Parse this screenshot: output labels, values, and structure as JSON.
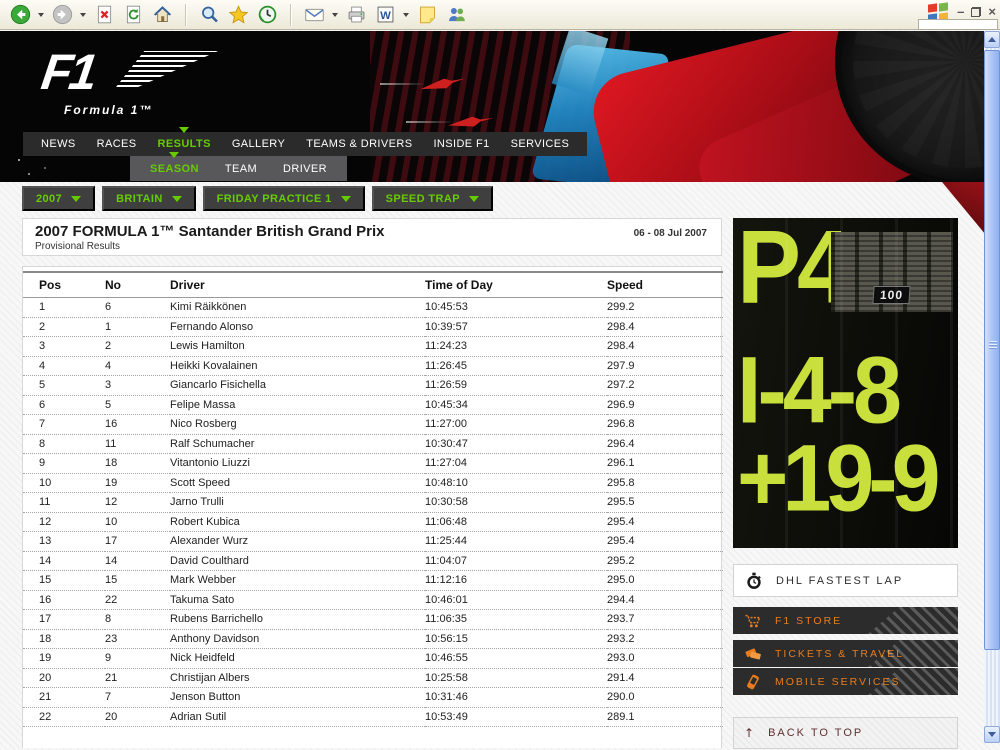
{
  "browser": {
    "toolbar_items": [
      {
        "name": "back-icon",
        "dropdown": true
      },
      {
        "name": "forward-icon",
        "dropdown": true
      },
      {
        "name": "stop-icon"
      },
      {
        "name": "refresh-icon"
      },
      {
        "name": "home-icon"
      },
      {
        "name": "separator"
      },
      {
        "name": "search-icon"
      },
      {
        "name": "favorites-icon"
      },
      {
        "name": "history-icon"
      },
      {
        "name": "separator"
      },
      {
        "name": "mail-icon",
        "dropdown": true
      },
      {
        "name": "print-icon"
      },
      {
        "name": "word-edit-icon",
        "dropdown": true
      },
      {
        "name": "notes-icon"
      },
      {
        "name": "messenger-icon"
      }
    ],
    "window_controls": [
      "minimize-button",
      "restore-button",
      "close-button"
    ]
  },
  "header": {
    "logo_title": "F1",
    "logo_subtitle": "Formula 1™"
  },
  "nav": {
    "items": [
      "NEWS",
      "RACES",
      "RESULTS",
      "GALLERY",
      "TEAMS & DRIVERS",
      "INSIDE F1",
      "SERVICES"
    ],
    "active_item": "RESULTS",
    "sub_items": [
      "SEASON",
      "TEAM",
      "DRIVER"
    ],
    "active_sub_item": "SEASON"
  },
  "filters": [
    "2007",
    "BRITAIN",
    "FRIDAY PRACTICE 1",
    "SPEED TRAP"
  ],
  "page": {
    "title": "2007 FORMULA 1™ Santander British Grand Prix",
    "subtitle": "Provisional Results",
    "date_range": "06 - 08 Jul 2007"
  },
  "results_table": {
    "columns": [
      "Pos",
      "No",
      "Driver",
      "Time of Day",
      "Speed"
    ],
    "rows": [
      [
        "1",
        "6",
        "Kimi Räikkönen",
        "10:45:53",
        "299.2"
      ],
      [
        "2",
        "1",
        "Fernando Alonso",
        "10:39:57",
        "298.4"
      ],
      [
        "3",
        "2",
        "Lewis Hamilton",
        "11:24:23",
        "298.4"
      ],
      [
        "4",
        "4",
        "Heikki Kovalainen",
        "11:26:45",
        "297.9"
      ],
      [
        "5",
        "3",
        "Giancarlo Fisichella",
        "11:26:59",
        "297.2"
      ],
      [
        "6",
        "5",
        "Felipe Massa",
        "10:45:34",
        "296.9"
      ],
      [
        "7",
        "16",
        "Nico Rosberg",
        "11:27:00",
        "296.8"
      ],
      [
        "8",
        "11",
        "Ralf Schumacher",
        "10:30:47",
        "296.4"
      ],
      [
        "9",
        "18",
        "Vitantonio Liuzzi",
        "11:27:04",
        "296.1"
      ],
      [
        "10",
        "19",
        "Scott Speed",
        "10:48:10",
        "295.8"
      ],
      [
        "11",
        "12",
        "Jarno Trulli",
        "10:30:58",
        "295.5"
      ],
      [
        "12",
        "10",
        "Robert Kubica",
        "11:06:48",
        "295.4"
      ],
      [
        "13",
        "17",
        "Alexander Wurz",
        "11:25:44",
        "295.4"
      ],
      [
        "14",
        "14",
        "David Coulthard",
        "11:04:07",
        "295.2"
      ],
      [
        "15",
        "15",
        "Mark Webber",
        "11:12:16",
        "295.0"
      ],
      [
        "16",
        "22",
        "Takuma Sato",
        "10:46:01",
        "294.4"
      ],
      [
        "17",
        "8",
        "Rubens Barrichello",
        "11:06:35",
        "293.7"
      ],
      [
        "18",
        "23",
        "Anthony Davidson",
        "10:56:15",
        "293.2"
      ],
      [
        "19",
        "9",
        "Nick Heidfeld",
        "10:46:55",
        "293.0"
      ],
      [
        "20",
        "21",
        "Christijan Albers",
        "10:25:58",
        "291.4"
      ],
      [
        "21",
        "7",
        "Jenson Button",
        "10:31:46",
        "290.0"
      ],
      [
        "22",
        "20",
        "Adrian Sutil",
        "10:53:49",
        "289.1"
      ]
    ]
  },
  "sidebar": {
    "pitboard": {
      "line1": "P4",
      "line2": "I-4-8",
      "line3": "+19-9",
      "sign": "100"
    },
    "fastest_lap_label": "DHL FASTEST LAP",
    "promo_buttons": [
      {
        "label": "F1 STORE",
        "icon": "cart-icon"
      },
      {
        "label": "TICKETS & TRAVEL",
        "icon": "tickets-icon"
      },
      {
        "label": "MOBILE SERVICES",
        "icon": "mobile-icon"
      }
    ],
    "back_to_top_label": "BACK TO TOP"
  },
  "colors": {
    "accent_green": "#66cc00",
    "promo_orange": "#e87d1e",
    "pitboard_green": "#c9df3b"
  }
}
